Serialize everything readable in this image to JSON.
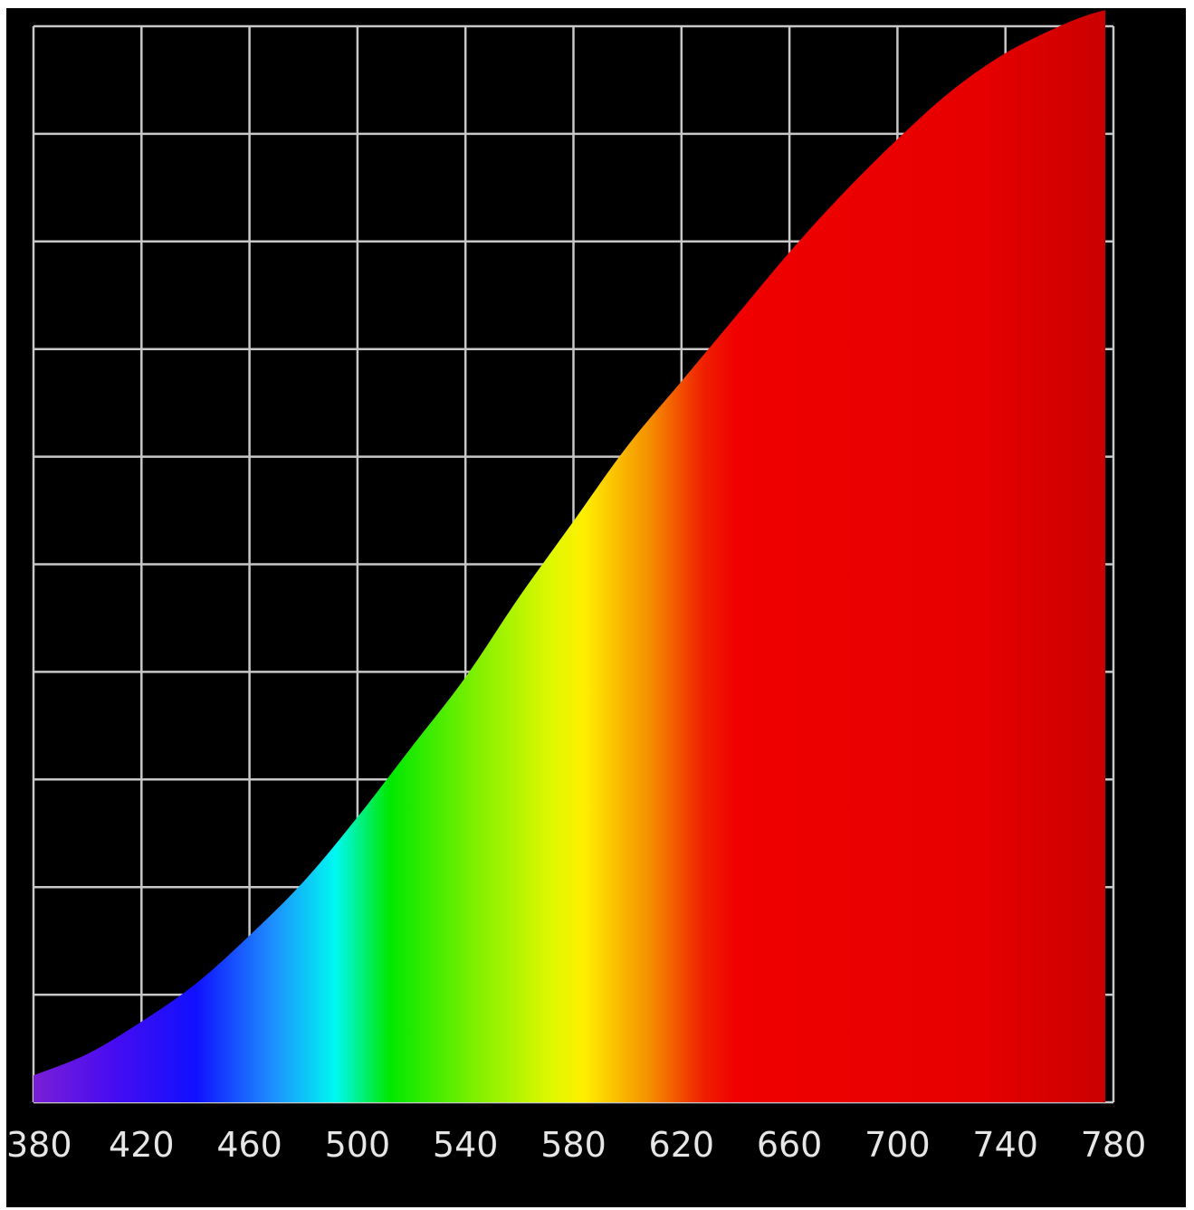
{
  "chart_data": {
    "type": "area",
    "title": "",
    "xlabel": "",
    "ylabel": "",
    "xlim": [
      380,
      780
    ],
    "ylim": [
      0,
      10
    ],
    "x_ticks": [
      380,
      420,
      460,
      500,
      540,
      580,
      620,
      660,
      700,
      740,
      780
    ],
    "grid": true,
    "background": "#000000",
    "grid_color": "#c8c8c8",
    "fill": "visible-spectrum-gradient",
    "series": [
      {
        "x": [
          380,
          400,
          420,
          440,
          460,
          480,
          500,
          520,
          540,
          560,
          580,
          600,
          620,
          640,
          660,
          680,
          700,
          720,
          740,
          760,
          770,
          777
        ],
        "values": [
          0.25,
          0.45,
          0.75,
          1.1,
          1.55,
          2.05,
          2.65,
          3.3,
          3.95,
          4.7,
          5.4,
          6.1,
          6.7,
          7.3,
          7.9,
          8.45,
          8.95,
          9.4,
          9.75,
          10.0,
          10.1,
          10.15
        ]
      }
    ]
  }
}
